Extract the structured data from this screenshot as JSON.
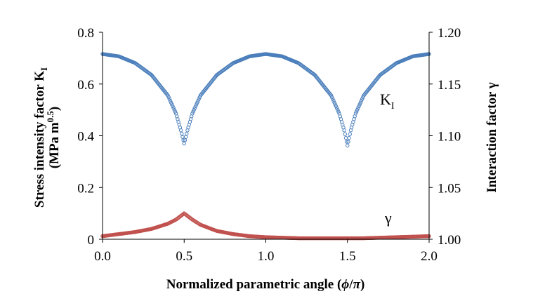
{
  "chart_data": {
    "type": "scatter",
    "x_axis": {
      "label": "Normalized parametric angle (",
      "label_phi": "ϕ",
      "label_slash": "/",
      "label_pi": "π",
      "label_close": ")",
      "range": [
        0.0,
        2.0
      ],
      "ticks": [
        "0.0",
        "0.5",
        "1.0",
        "1.5",
        "2.0"
      ]
    },
    "y_left": {
      "label_line1": "Stress intensity factor K",
      "label_line1_sub": "I",
      "label_line2": "(MPa m",
      "label_line2_sup": "0.5",
      "label_line2_close": ")",
      "range": [
        0,
        0.8
      ],
      "ticks": [
        "0",
        "0.2",
        "0.4",
        "0.6",
        "0.8"
      ]
    },
    "y_right": {
      "label": "Interaction factor γ",
      "range": [
        1.0,
        1.2
      ],
      "ticks": [
        "1.00",
        "1.05",
        "1.10",
        "1.15",
        "1.20"
      ]
    },
    "series": [
      {
        "name": "K_I",
        "label_main": "K",
        "label_sub": "I",
        "axis": "left",
        "color": "#4a7ebb",
        "marker": "open-circle",
        "x": [
          0.0,
          0.1,
          0.2,
          0.3,
          0.4,
          0.45,
          0.48,
          0.5,
          0.52,
          0.55,
          0.6,
          0.7,
          0.8,
          0.9,
          1.0,
          1.1,
          1.2,
          1.3,
          1.4,
          1.45,
          1.48,
          1.5,
          1.52,
          1.55,
          1.6,
          1.7,
          1.8,
          1.9,
          2.0
        ],
        "y": [
          0.716,
          0.707,
          0.681,
          0.635,
          0.556,
          0.486,
          0.421,
          0.37,
          0.421,
          0.486,
          0.556,
          0.635,
          0.681,
          0.707,
          0.716,
          0.707,
          0.681,
          0.635,
          0.556,
          0.486,
          0.421,
          0.362,
          0.421,
          0.486,
          0.556,
          0.635,
          0.681,
          0.707,
          0.716
        ]
      },
      {
        "name": "gamma",
        "label_main": "γ",
        "axis": "right",
        "color": "#c0504d",
        "marker": "open-circle",
        "x": [
          0.0,
          0.1,
          0.2,
          0.3,
          0.4,
          0.45,
          0.5,
          0.55,
          0.6,
          0.7,
          0.8,
          0.9,
          1.0,
          1.2,
          1.4,
          1.5,
          1.6,
          1.8,
          2.0
        ],
        "y": [
          1.003,
          1.005,
          1.007,
          1.01,
          1.015,
          1.019,
          1.025,
          1.019,
          1.014,
          1.008,
          1.005,
          1.003,
          1.002,
          1.001,
          1.001,
          1.001,
          1.001,
          1.002,
          1.003
        ]
      }
    ]
  }
}
